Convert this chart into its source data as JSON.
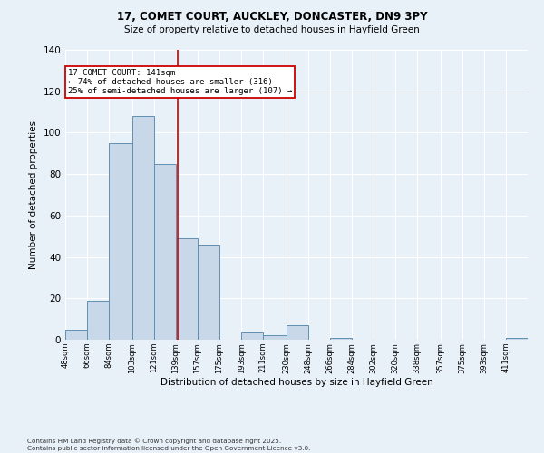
{
  "title_line1": "17, COMET COURT, AUCKLEY, DONCASTER, DN9 3PY",
  "title_line2": "Size of property relative to detached houses in Hayfield Green",
  "xlabel": "Distribution of detached houses by size in Hayfield Green",
  "ylabel": "Number of detached properties",
  "bar_edges": [
    48,
    66,
    84,
    103,
    121,
    139,
    157,
    175,
    193,
    211,
    230,
    248,
    266,
    284,
    302,
    320,
    338,
    357,
    375,
    393,
    411
  ],
  "bar_heights": [
    5,
    19,
    95,
    108,
    85,
    49,
    46,
    0,
    4,
    2,
    7,
    0,
    1,
    0,
    0,
    0,
    0,
    0,
    0,
    0,
    1
  ],
  "bar_color": "#c8d8e8",
  "bar_edge_color": "#6090b0",
  "reference_line_x": 141,
  "reference_line_color": "#cc0000",
  "annotation_text": "17 COMET COURT: 141sqm\n← 74% of detached houses are smaller (316)\n25% of semi-detached houses are larger (107) →",
  "annotation_box_color": "#ffffff",
  "annotation_box_edge_color": "#cc0000",
  "ylim": [
    0,
    140
  ],
  "background_color": "#e8f0f8",
  "grid_color": "#ffffff",
  "footer_text": "Contains HM Land Registry data © Crown copyright and database right 2025.\nContains public sector information licensed under the Open Government Licence v3.0.",
  "tick_labels": [
    "48sqm",
    "66sqm",
    "84sqm",
    "103sqm",
    "121sqm",
    "139sqm",
    "157sqm",
    "175sqm",
    "193sqm",
    "211sqm",
    "230sqm",
    "248sqm",
    "266sqm",
    "284sqm",
    "302sqm",
    "320sqm",
    "338sqm",
    "357sqm",
    "375sqm",
    "393sqm",
    "411sqm"
  ],
  "figsize": [
    6.0,
    5.0
  ],
  "dpi": 100
}
